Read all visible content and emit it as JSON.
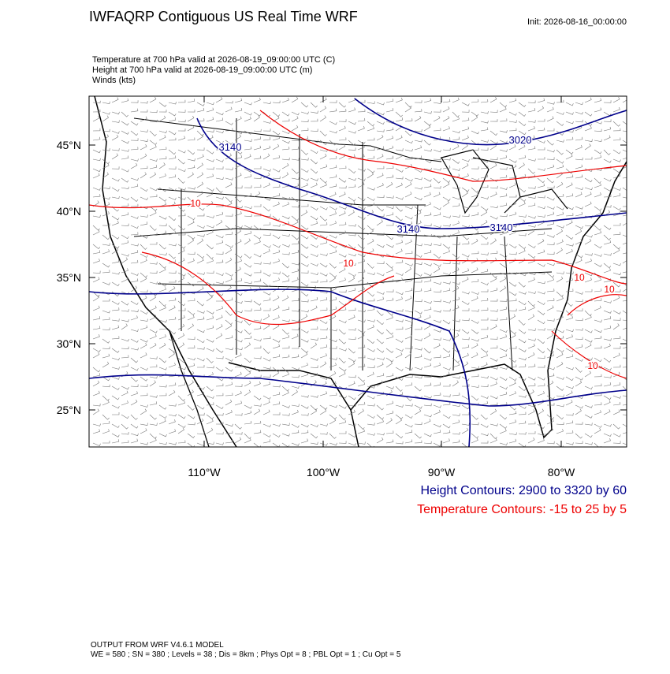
{
  "header": {
    "title": "IWFAQRP Contiguous US Real Time WRF",
    "init": "Init: 2026-08-16_00:00:00"
  },
  "fields": [
    "Temperature at 700 hPa valid at 2026-08-19_09:00:00 UTC   (C)",
    "Height at 700 hPa valid at 2026-08-19_09:00:00 UTC   (m)",
    "Winds   (kts)"
  ],
  "map": {
    "lat_labels": [
      "45°N",
      "40°N",
      "35°N",
      "30°N",
      "25°N"
    ],
    "lon_labels": [
      "110°W",
      "100°W",
      "90°W",
      "80°W"
    ],
    "height_contour_labels": [
      "3140",
      "3020",
      "3140",
      "3140"
    ],
    "temperature_contour_labels": [
      "10",
      "10",
      "10",
      "10",
      "10"
    ]
  },
  "legend": {
    "height": "Height Contours: 2900 to 3320 by 60",
    "temperature": "Temperature Contours: -15 to 25 by 5"
  },
  "footer": {
    "model": "OUTPUT FROM WRF V4.6.1 MODEL",
    "settings": "WE = 580 ; SN = 380 ; Levels = 38 ; Dis = 8km ; Phys Opt = 8 ; PBL Opt = 1 ; Cu Opt = 5"
  }
}
